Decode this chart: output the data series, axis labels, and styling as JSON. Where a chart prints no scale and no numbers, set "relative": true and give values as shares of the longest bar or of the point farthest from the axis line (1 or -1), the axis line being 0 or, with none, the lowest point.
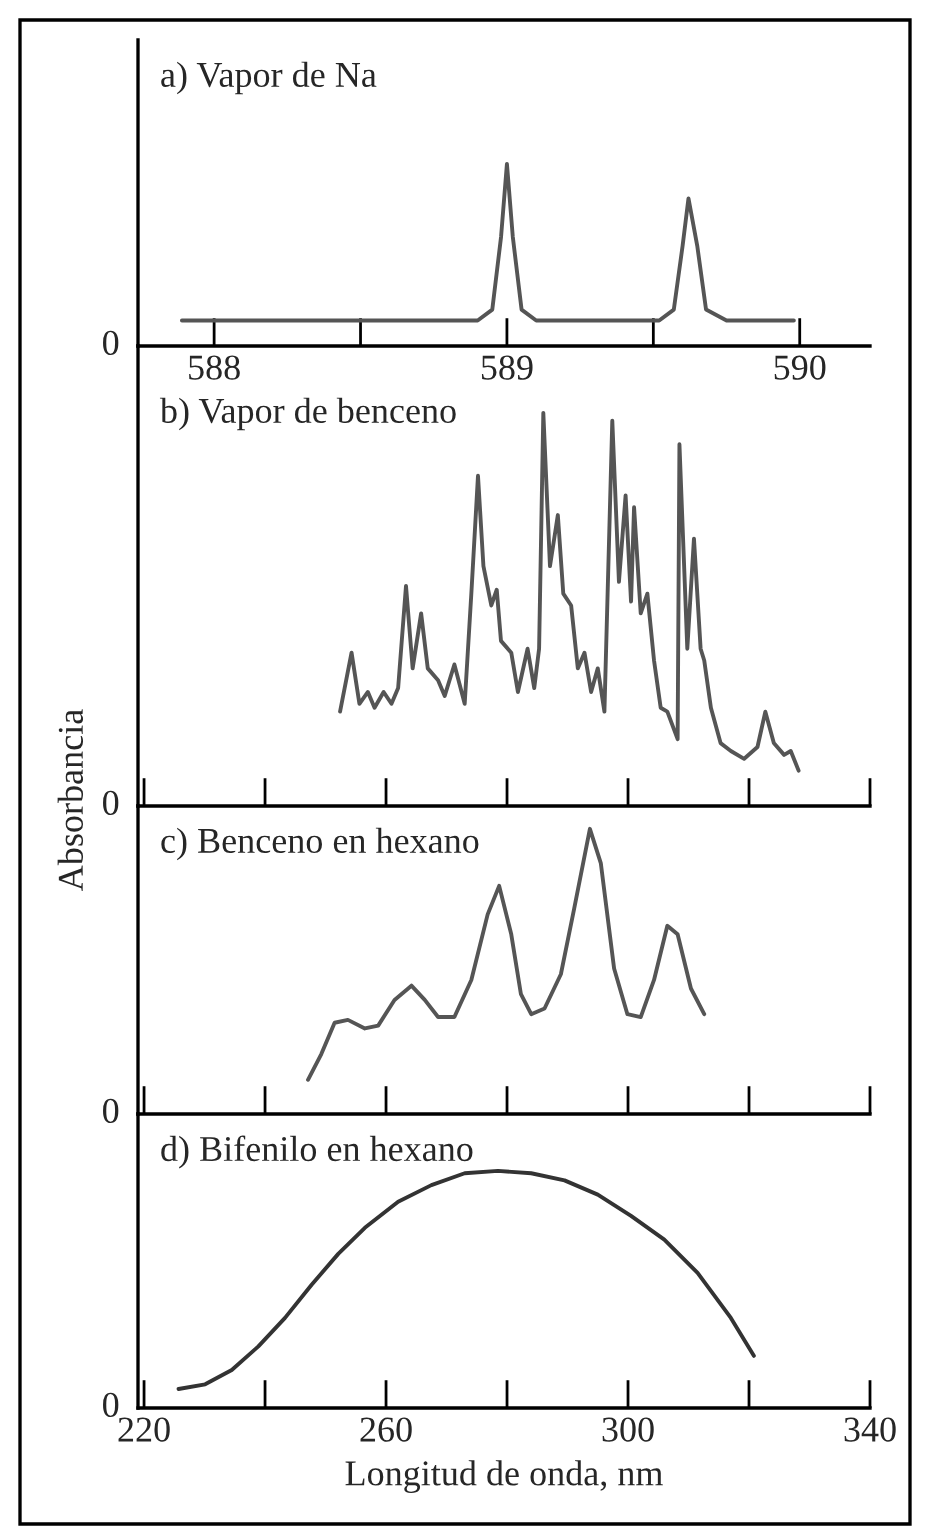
{
  "chart_data": [
    {
      "type": "line",
      "title": "a) Vapor de Na",
      "relative": true,
      "xlim": [
        587.74,
        590.24
      ],
      "xticks": [
        588,
        {
          "value": 588.5,
          "label": null
        },
        589,
        {
          "value": 589.5,
          "label": null
        },
        590
      ],
      "tick_labels": "x",
      "annotations": [
        "0"
      ],
      "x": [
        587.89,
        588.9,
        588.95,
        588.98,
        589.0,
        589.02,
        589.05,
        589.1,
        589.52,
        589.57,
        589.6,
        589.62,
        589.65,
        589.68,
        589.75,
        589.98
      ],
      "series": [
        {
          "color": "#555555",
          "values": [
            0.14,
            0.14,
            0.2,
            0.6,
            1.0,
            0.6,
            0.2,
            0.14,
            0.14,
            0.2,
            0.55,
            0.81,
            0.55,
            0.2,
            0.14,
            0.14
          ]
        }
      ]
    },
    {
      "type": "line",
      "title": "b) Vapor de benceno",
      "ylabel": "Absorbancia",
      "relative": true,
      "xlim": [
        219,
        340
      ],
      "xticks": [
        220,
        {
          "value": 240,
          "label": null
        },
        260,
        {
          "value": 280,
          "label": null
        },
        300,
        {
          "value": 320,
          "label": null
        },
        340
      ],
      "tick_labels": false,
      "annotations": [
        "0"
      ],
      "x": [
        252.4,
        254.3,
        255.6,
        257.0,
        258.1,
        259.6,
        260.9,
        262.0,
        263.3,
        264.4,
        265.8,
        266.9,
        268.6,
        269.7,
        271.3,
        273.0,
        274.1,
        275.2,
        276.1,
        277.4,
        278.3,
        279.0,
        280.7,
        281.8,
        283.4,
        284.5,
        285.3,
        286.0,
        287.1,
        288.4,
        289.3,
        290.6,
        291.7,
        292.8,
        293.9,
        295.0,
        296.1,
        297.4,
        298.5,
        299.6,
        300.5,
        301.0,
        302.1,
        303.2,
        304.3,
        305.4,
        306.5,
        308.2,
        308.5,
        309.8,
        310.9,
        312.0,
        312.6,
        313.7,
        315.3,
        317.0,
        319.2,
        321.4,
        322.7,
        324.1,
        325.8,
        326.9,
        328.2
      ],
      "series": [
        {
          "color": "#555555",
          "values": [
            0.24,
            0.39,
            0.26,
            0.29,
            0.25,
            0.29,
            0.26,
            0.3,
            0.56,
            0.35,
            0.49,
            0.35,
            0.32,
            0.28,
            0.36,
            0.26,
            0.54,
            0.84,
            0.61,
            0.51,
            0.55,
            0.42,
            0.39,
            0.29,
            0.4,
            0.3,
            0.4,
            1.0,
            0.61,
            0.74,
            0.54,
            0.51,
            0.35,
            0.39,
            0.29,
            0.35,
            0.24,
            0.98,
            0.57,
            0.79,
            0.52,
            0.76,
            0.49,
            0.54,
            0.37,
            0.25,
            0.24,
            0.17,
            0.92,
            0.4,
            0.68,
            0.4,
            0.37,
            0.25,
            0.16,
            0.14,
            0.12,
            0.15,
            0.24,
            0.16,
            0.13,
            0.14,
            0.09
          ]
        }
      ]
    },
    {
      "type": "line",
      "title": "c) Benceno en hexano",
      "relative": true,
      "xlim": [
        219,
        340
      ],
      "xticks": [
        220,
        {
          "value": 240,
          "label": null
        },
        260,
        {
          "value": 280,
          "label": null
        },
        300,
        {
          "value": 320,
          "label": null
        },
        340
      ],
      "tick_labels": false,
      "annotations": [
        "0"
      ],
      "x": [
        247.1,
        249.3,
        251.5,
        253.7,
        256.5,
        258.7,
        261.4,
        264.2,
        266.4,
        268.6,
        271.3,
        274.1,
        276.8,
        278.7,
        280.7,
        282.3,
        284.0,
        286.2,
        288.9,
        291.1,
        293.7,
        295.5,
        297.7,
        299.9,
        302.1,
        304.3,
        306.5,
        308.2,
        310.4,
        312.6
      ],
      "series": [
        {
          "color": "#555555",
          "values": [
            0.12,
            0.21,
            0.32,
            0.33,
            0.3,
            0.31,
            0.4,
            0.45,
            0.4,
            0.34,
            0.34,
            0.47,
            0.7,
            0.8,
            0.63,
            0.42,
            0.35,
            0.37,
            0.49,
            0.72,
            1.0,
            0.88,
            0.51,
            0.35,
            0.34,
            0.47,
            0.66,
            0.63,
            0.44,
            0.35
          ]
        }
      ]
    },
    {
      "type": "line",
      "title": "d) Bifenilo en hexano",
      "xlabel": "Longitud de onda, nm",
      "relative": true,
      "xlim": [
        219,
        340
      ],
      "xticks": [
        220,
        {
          "value": 240,
          "label": null
        },
        260,
        {
          "value": 280,
          "label": null
        },
        300,
        {
          "value": 320,
          "label": null
        },
        340
      ],
      "tick_labels": "x",
      "annotations": [
        "0"
      ],
      "x": [
        225.7,
        230.1,
        234.5,
        238.9,
        243.3,
        247.7,
        252.1,
        256.5,
        262.0,
        267.5,
        273.0,
        278.5,
        284.0,
        289.5,
        295.0,
        300.5,
        306.0,
        311.5,
        317.0,
        320.8
      ],
      "series": [
        {
          "color": "#333333",
          "values": [
            0.08,
            0.1,
            0.16,
            0.26,
            0.38,
            0.52,
            0.65,
            0.76,
            0.87,
            0.94,
            0.99,
            1.0,
            0.99,
            0.96,
            0.9,
            0.81,
            0.71,
            0.57,
            0.38,
            0.22
          ]
        }
      ]
    }
  ]
}
